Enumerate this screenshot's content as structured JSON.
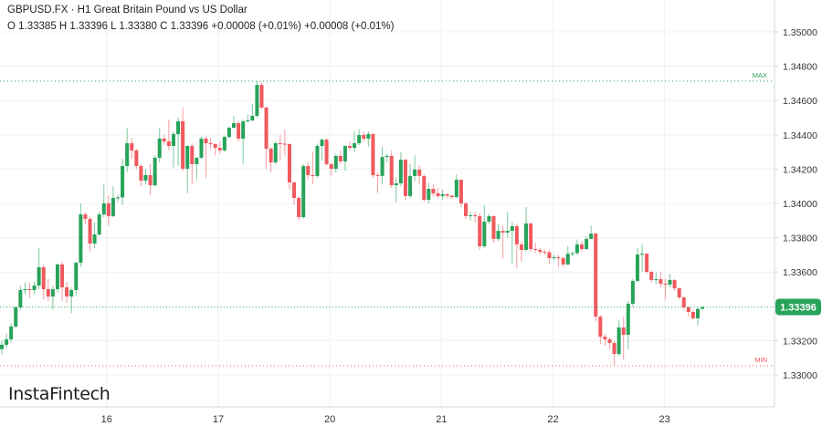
{
  "header": {
    "title": "GBPUSD.FX · H1 Great Britain Pound vs US Dollar",
    "ohlc": "O 1.33385 H 1.33396 L 1.33380 C 1.33396 +0.00008 (+0.01%) +0.00008 (+0.01%)"
  },
  "logo": "InstaFintech",
  "colors": {
    "up": "#27a35a",
    "down": "#f0595e",
    "grid": "#eef0f3",
    "axis": "#cfd6dc",
    "text": "#333333",
    "max": "#27a35a",
    "min": "#f0595e"
  },
  "chart_data": {
    "type": "candlestick",
    "title": "GBPUSD.FX · H1 Great Britain Pound vs US Dollar",
    "timeframe": "H1",
    "x_tick_labels": [
      "16",
      "17",
      "20",
      "21",
      "22",
      "23"
    ],
    "y_tick_labels": [
      "1.35000",
      "1.34800",
      "1.34600",
      "1.34400",
      "1.34200",
      "1.34000",
      "1.33800",
      "1.33600",
      "1.33200",
      "1.33000"
    ],
    "y_ticks": [
      1.35,
      1.348,
      1.346,
      1.344,
      1.342,
      1.34,
      1.338,
      1.336,
      1.332,
      1.33
    ],
    "grid": true,
    "current_price": 1.33396,
    "current_price_label": "1.33396",
    "max": {
      "label": "MAX",
      "value": 1.34713
    },
    "min": {
      "label": "MIN",
      "value": 1.33053
    },
    "open": [
      1.3315,
      1.33176,
      1.33207,
      1.33282,
      1.33394,
      1.33495,
      1.335,
      1.33495,
      1.33521,
      1.33628,
      1.335,
      1.33457,
      1.335,
      1.33644,
      1.33511,
      1.33457,
      1.33495,
      1.33654,
      1.33936,
      1.3391,
      1.33766,
      1.33819,
      1.33936,
      1.34,
      1.33926,
      1.34032,
      1.34035,
      1.34218,
      1.34351,
      1.34309,
      1.34218,
      1.34133,
      1.34165,
      1.34106,
      1.34266,
      1.34378,
      1.34362,
      1.34335,
      1.34404,
      1.34479,
      1.34202,
      1.34335,
      1.34229,
      1.34266,
      1.34378,
      1.34351,
      1.34346,
      1.34324,
      1.34309,
      1.34388,
      1.34441,
      1.34468,
      1.34378,
      1.34479,
      1.34484,
      1.34511,
      1.34691,
      1.34559,
      1.34319,
      1.34239,
      1.34351,
      1.34348,
      1.34346,
      1.34122,
      1.34032,
      1.3392,
      1.34218,
      1.34165,
      1.3416,
      1.34335,
      1.34372,
      1.34229,
      1.34202,
      1.34277,
      1.34245,
      1.34335,
      1.34324,
      1.34351,
      1.34399,
      1.34378,
      1.34404,
      1.34165,
      1.3416,
      1.34271,
      1.34277,
      1.34106,
      1.34117,
      1.34255,
      1.34043,
      1.3416,
      1.34197,
      1.3416,
      1.34021,
      1.34085,
      1.34059,
      1.34043,
      1.34053,
      1.34045,
      1.34037,
      1.34138,
      1.34,
      1.33926,
      1.33931,
      1.33926,
      1.3375,
      1.33894,
      1.33926,
      1.33793,
      1.3384,
      1.3383,
      1.3384,
      1.33867,
      1.33761,
      1.33729,
      1.33883,
      1.33734,
      1.33729,
      1.33718,
      1.33715,
      1.33681,
      1.33686,
      1.3368,
      1.33644,
      1.33707,
      1.3371,
      1.33761,
      1.33734,
      1.33793,
      1.33824,
      1.3334,
      1.33223,
      1.33207,
      1.33186,
      1.33122,
      1.33277,
      1.33234,
      1.33415,
      1.33548,
      1.33702,
      1.33707,
      1.33601,
      1.33553,
      1.33558,
      1.33532,
      1.33527,
      1.33553,
      1.33505,
      1.33452,
      1.33394,
      1.33367,
      1.3333,
      1.33385
    ],
    "high": [
      1.332,
      1.3324,
      1.333,
      1.334,
      1.3352,
      1.3354,
      1.3354,
      1.33545,
      1.3374,
      1.3364,
      1.3356,
      1.3352,
      1.3365,
      1.3366,
      1.3354,
      1.3351,
      1.3366,
      1.34,
      1.3395,
      1.3392,
      1.3389,
      1.3395,
      1.3411,
      1.3405,
      1.341,
      1.3405,
      1.3426,
      1.3444,
      1.3438,
      1.3432,
      1.3423,
      1.342,
      1.3423,
      1.3428,
      1.3444,
      1.344,
      1.3449,
      1.3442,
      1.345,
      1.3456,
      1.3434,
      1.3435,
      1.3427,
      1.3439,
      1.3439,
      1.3438,
      1.3435,
      1.3436,
      1.34395,
      1.3445,
      1.3451,
      1.3448,
      1.3449,
      1.3452,
      1.3458,
      1.34713,
      1.3471,
      1.34565,
      1.3433,
      1.3436,
      1.344,
      1.3443,
      1.3435,
      1.3413,
      1.3404,
      1.3423,
      1.3424,
      1.343,
      1.3435,
      1.3438,
      1.3438,
      1.3424,
      1.3429,
      1.3431,
      1.3434,
      1.3436,
      1.3442,
      1.3443,
      1.3442,
      1.3442,
      1.3441,
      1.3418,
      1.3433,
      1.3429,
      1.3431,
      1.3415,
      1.343,
      1.3426,
      1.3423,
      1.3428,
      1.3422,
      1.3417,
      1.3412,
      1.3411,
      1.3409,
      1.3408,
      1.3406,
      1.3405,
      1.3417,
      1.3414,
      1.3401,
      1.3395,
      1.3395,
      1.3394,
      1.3399,
      1.3394,
      1.3393,
      1.3388,
      1.3387,
      1.3395,
      1.3389,
      1.3388,
      1.3378,
      1.3398,
      1.3389,
      1.3377,
      1.3374,
      1.3373,
      1.3373,
      1.337,
      1.337,
      1.3369,
      1.3375,
      1.3372,
      1.3379,
      1.3378,
      1.3381,
      1.3387,
      1.3383,
      1.3335,
      1.3324,
      1.3322,
      1.332,
      1.3332,
      1.3334,
      1.3343,
      1.3356,
      1.3374,
      1.3376,
      1.3371,
      1.3361,
      1.336,
      1.336,
      1.3356,
      1.3359,
      1.3356,
      1.3351,
      1.3346,
      1.334,
      1.3338,
      1.3339,
      1.33396
    ],
    "low": [
      1.3312,
      1.3316,
      1.3319,
      1.3327,
      1.3338,
      1.3347,
      1.3345,
      1.3347,
      1.335,
      1.3344,
      1.3343,
      1.3338,
      1.3348,
      1.3343,
      1.3342,
      1.3336,
      1.3346,
      1.3363,
      1.3388,
      1.3372,
      1.3374,
      1.3381,
      1.3392,
      1.3387,
      1.3392,
      1.3401,
      1.3399,
      1.3418,
      1.3426,
      1.342,
      1.341,
      1.3411,
      1.3405,
      1.341,
      1.3424,
      1.3434,
      1.3431,
      1.3421,
      1.3422,
      1.3419,
      1.3406,
      1.3411,
      1.3414,
      1.3426,
      1.3415,
      1.3432,
      1.3428,
      1.3429,
      1.343,
      1.3438,
      1.3444,
      1.3436,
      1.3423,
      1.3447,
      1.3448,
      1.345,
      1.3455,
      1.342,
      1.3418,
      1.3423,
      1.3425,
      1.3428,
      1.3408,
      1.3399,
      1.339,
      1.3391,
      1.3414,
      1.3411,
      1.3415,
      1.3425,
      1.3422,
      1.3416,
      1.3418,
      1.3423,
      1.3419,
      1.3431,
      1.343,
      1.3434,
      1.3436,
      1.3433,
      1.3415,
      1.3406,
      1.3411,
      1.3424,
      1.3409,
      1.3401,
      1.341,
      1.3402,
      1.3403,
      1.3413,
      1.3411,
      1.3401,
      1.34,
      1.3404,
      1.3403,
      1.3402,
      1.3403,
      1.34025,
      1.3403,
      1.3398,
      1.3391,
      1.339,
      1.3389,
      1.3373,
      1.3374,
      1.3388,
      1.3377,
      1.3378,
      1.3368,
      1.338,
      1.3365,
      1.3362,
      1.3366,
      1.3372,
      1.3372,
      1.3371,
      1.337,
      1.337,
      1.3365,
      1.3367,
      1.3363,
      1.3363,
      1.3364,
      1.3369,
      1.337,
      1.3372,
      1.3373,
      1.3379,
      1.3331,
      1.3318,
      1.3317,
      1.3315,
      1.33053,
      1.3311,
      1.3309,
      1.3315,
      1.334,
      1.3354,
      1.336,
      1.3359,
      1.3354,
      1.3353,
      1.3351,
      1.3344,
      1.3351,
      1.3349,
      1.3344,
      1.3338,
      1.3334,
      1.3332,
      1.3329,
      1.3338
    ],
    "close": [
      1.33176,
      1.33207,
      1.33282,
      1.33394,
      1.33495,
      1.335,
      1.33495,
      1.33521,
      1.33628,
      1.335,
      1.33457,
      1.335,
      1.33644,
      1.33511,
      1.33457,
      1.33495,
      1.33654,
      1.33936,
      1.3391,
      1.33766,
      1.33819,
      1.33936,
      1.34,
      1.33926,
      1.34032,
      1.34035,
      1.34218,
      1.34351,
      1.34309,
      1.34218,
      1.34133,
      1.34165,
      1.34106,
      1.34266,
      1.34378,
      1.34362,
      1.34335,
      1.34404,
      1.34479,
      1.34202,
      1.34335,
      1.34229,
      1.34266,
      1.34378,
      1.34351,
      1.34346,
      1.34324,
      1.34309,
      1.34388,
      1.34441,
      1.34468,
      1.34378,
      1.34479,
      1.34484,
      1.34511,
      1.34691,
      1.34559,
      1.34319,
      1.34239,
      1.34351,
      1.34348,
      1.34346,
      1.34122,
      1.34032,
      1.3392,
      1.34218,
      1.34165,
      1.3416,
      1.34335,
      1.34372,
      1.34229,
      1.34202,
      1.34277,
      1.34245,
      1.34335,
      1.34324,
      1.34351,
      1.34399,
      1.34378,
      1.34404,
      1.34165,
      1.3416,
      1.34271,
      1.34277,
      1.34106,
      1.34117,
      1.34255,
      1.34043,
      1.3416,
      1.34197,
      1.3416,
      1.34021,
      1.34085,
      1.34059,
      1.34043,
      1.34053,
      1.34045,
      1.34037,
      1.34138,
      1.34,
      1.33926,
      1.33931,
      1.33926,
      1.3375,
      1.33894,
      1.33926,
      1.33793,
      1.3384,
      1.3383,
      1.3384,
      1.33867,
      1.33761,
      1.33729,
      1.33883,
      1.33734,
      1.33729,
      1.33718,
      1.33715,
      1.33681,
      1.33686,
      1.3368,
      1.33644,
      1.33707,
      1.3371,
      1.33761,
      1.33734,
      1.33793,
      1.33824,
      1.3334,
      1.33223,
      1.33207,
      1.33186,
      1.33122,
      1.33277,
      1.33234,
      1.33415,
      1.33548,
      1.33702,
      1.33707,
      1.33601,
      1.33553,
      1.33558,
      1.33532,
      1.33527,
      1.33553,
      1.33505,
      1.33452,
      1.33394,
      1.33367,
      1.3333,
      1.33385,
      1.33396
    ]
  }
}
